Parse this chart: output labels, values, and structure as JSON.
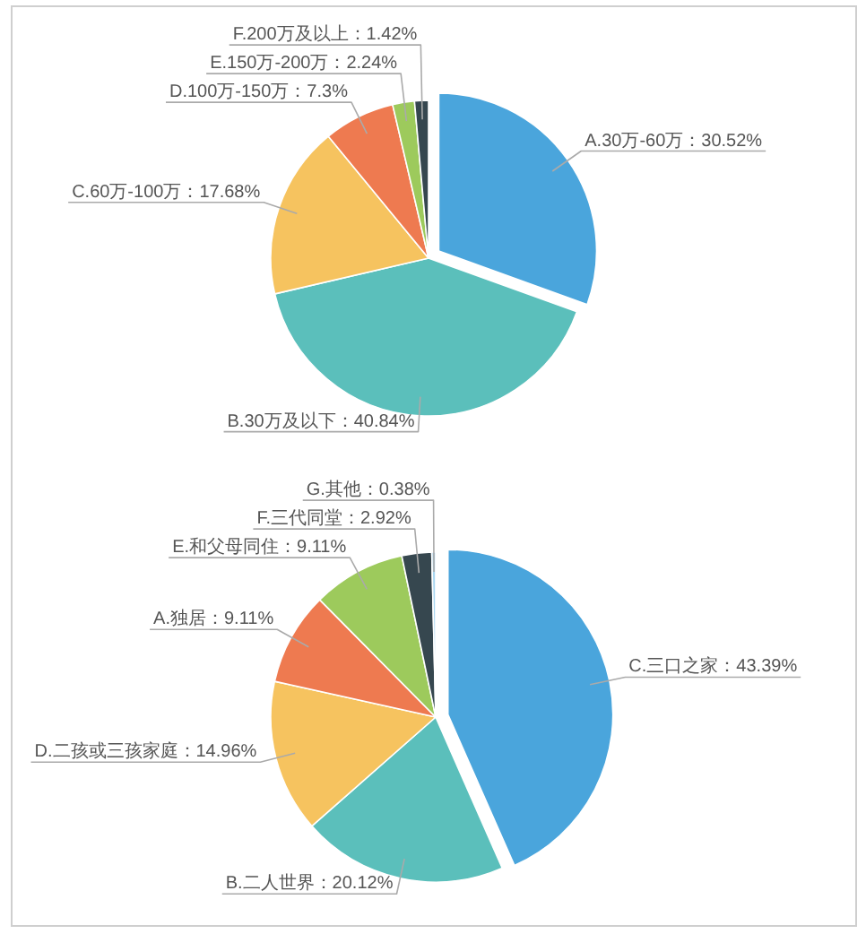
{
  "chart_data": [
    {
      "type": "pie",
      "categories": [
        "A.30万-60万",
        "B.30万及以下",
        "C.60万-100万",
        "D.100万-150万",
        "E.150万-200万",
        "F.200万及以上"
      ],
      "values": [
        30.52,
        40.84,
        17.68,
        7.3,
        2.24,
        1.42
      ],
      "value_labels": [
        "30.52%",
        "40.84%",
        "17.68%",
        "7.3%",
        "2.24%",
        "1.42%"
      ],
      "colors": [
        "#4aa5dc",
        "#5bbfbb",
        "#f6c35f",
        "#ee7a50",
        "#9dca5c",
        "#36474f"
      ]
    },
    {
      "type": "pie",
      "categories": [
        "C.三口之家",
        "B.二人世界",
        "D.二孩或三孩家庭",
        "A.独居",
        "E.和父母同住",
        "F.三代同堂",
        "G.其他"
      ],
      "values": [
        43.39,
        20.12,
        14.96,
        9.11,
        9.11,
        2.92,
        0.38
      ],
      "value_labels": [
        "43.39%",
        "20.12%",
        "14.96%",
        "9.11%",
        "9.11%",
        "2.92%",
        "0.38%"
      ],
      "colors": [
        "#4aa5dc",
        "#5bbfbb",
        "#f6c35f",
        "#ee7a50",
        "#9dca5c",
        "#36474f",
        "#a9d6f0"
      ]
    }
  ]
}
